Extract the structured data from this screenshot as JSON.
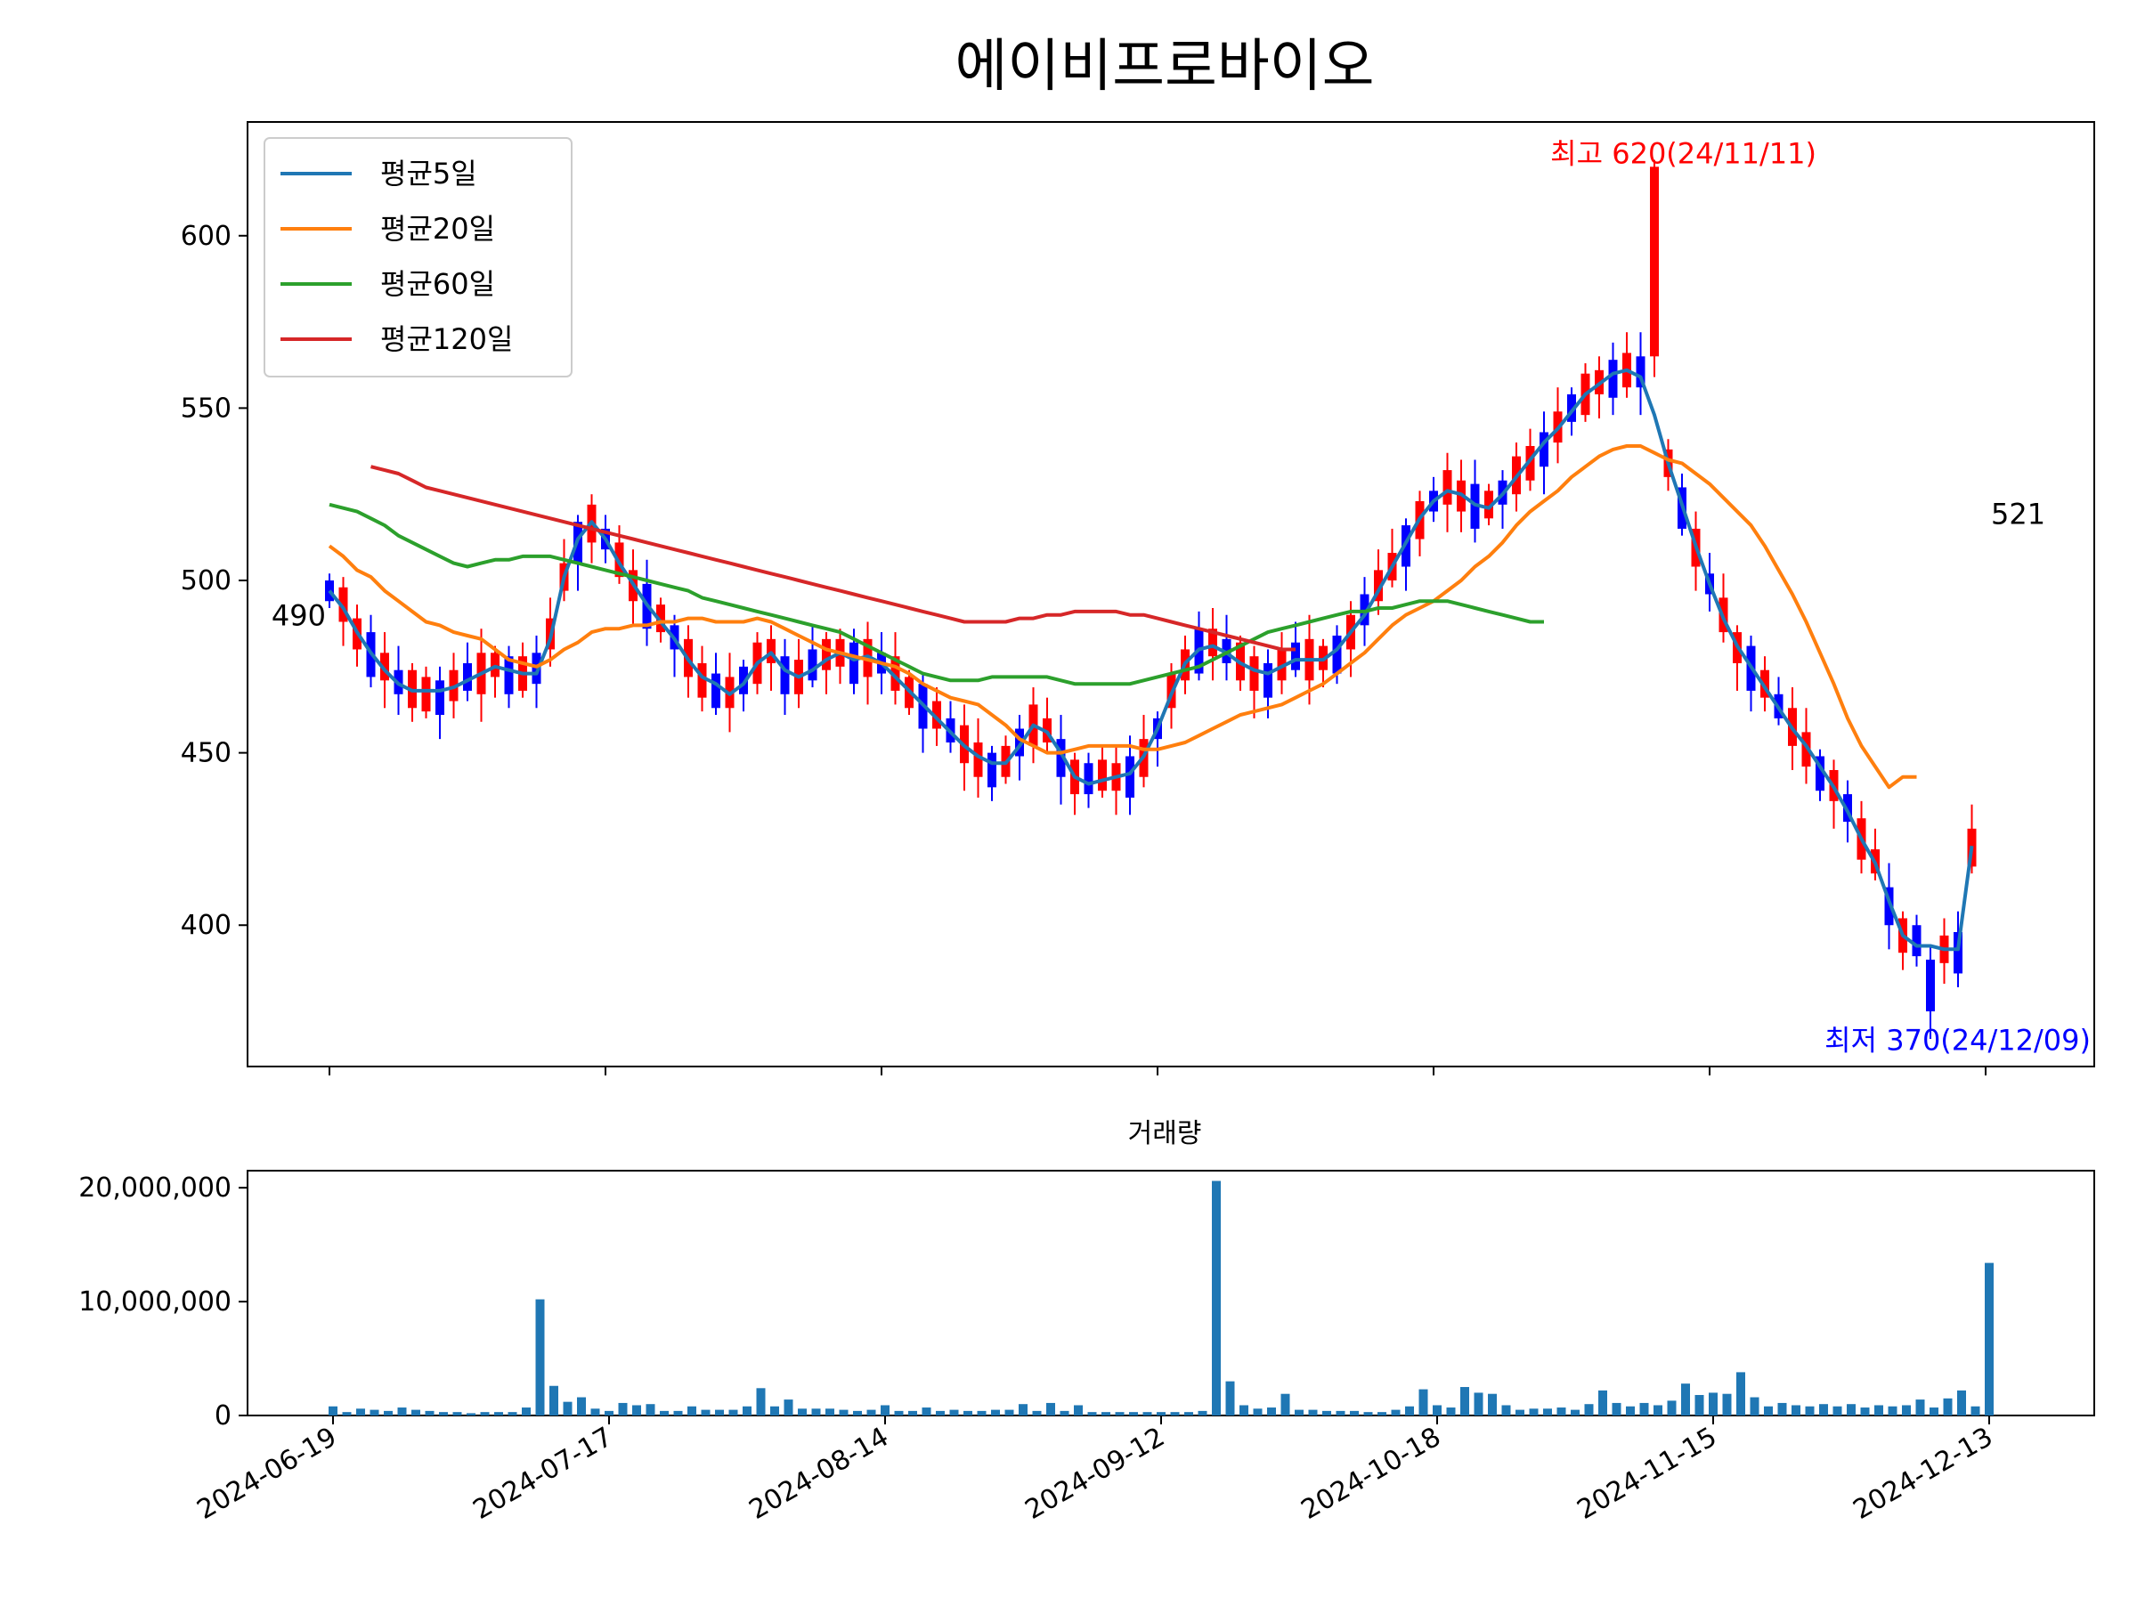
{
  "chart_data": [
    {
      "type": "candlestick",
      "title": "에이비프로바이오",
      "x_tick_labels": [
        "2024-06-19",
        "2024-07-17",
        "2024-08-14",
        "2024-09-12",
        "2024-10-18",
        "2024-11-15",
        "2024-12-13"
      ],
      "x_tick_index": [
        0,
        20,
        40,
        60,
        80,
        100,
        120
      ],
      "ylim": [
        359,
        633
      ],
      "y_ticks": [
        400,
        450,
        500,
        550,
        600
      ],
      "grid": false,
      "legend_position": "upper-left",
      "colors": {
        "up": "#ff0000",
        "down": "#0000ff"
      },
      "series": [
        {
          "name": "평균5일",
          "color": "#1f77b4",
          "start": 0,
          "values": [
            497,
            492,
            485,
            479,
            474,
            470,
            468,
            468,
            468,
            469,
            471,
            473,
            475,
            474,
            473,
            473,
            483,
            501,
            512,
            517,
            512,
            505,
            499,
            493,
            488,
            483,
            477,
            472,
            470,
            467,
            470,
            476,
            479,
            474,
            472,
            474,
            477,
            479,
            477,
            478,
            476,
            472,
            468,
            464,
            460,
            456,
            452,
            449,
            447,
            447,
            452,
            458,
            456,
            450,
            443,
            441,
            442,
            443,
            444,
            449,
            457,
            467,
            476,
            480,
            481,
            479,
            476,
            474,
            473,
            475,
            477,
            477,
            477,
            480,
            485,
            490,
            497,
            504,
            511,
            518,
            523,
            526,
            525,
            522,
            521,
            525,
            530,
            535,
            540,
            544,
            549,
            554,
            557,
            560,
            561,
            559,
            548,
            534,
            522,
            510,
            499,
            489,
            481,
            475,
            469,
            463,
            457,
            452,
            446,
            440,
            433,
            425,
            418,
            407,
            397,
            394,
            394,
            393,
            393,
            423
          ]
        },
        {
          "name": "평균20일",
          "color": "#ff7f0e",
          "start": 0,
          "values": [
            510,
            507,
            503,
            501,
            497,
            494,
            491,
            488,
            487,
            485,
            484,
            483,
            480,
            477,
            476,
            475,
            477,
            480,
            482,
            485,
            486,
            486,
            487,
            487,
            488,
            488,
            489,
            489,
            488,
            488,
            488,
            489,
            488,
            486,
            484,
            482,
            480,
            479,
            478,
            477,
            476,
            475,
            473,
            470,
            468,
            466,
            465,
            464,
            461,
            458,
            454,
            452,
            450,
            450,
            451,
            452,
            452,
            452,
            452,
            451,
            451,
            452,
            453,
            455,
            457,
            459,
            461,
            462,
            463,
            464,
            466,
            468,
            470,
            473,
            476,
            479,
            483,
            487,
            490,
            492,
            494,
            497,
            500,
            504,
            507,
            511,
            516,
            520,
            523,
            526,
            530,
            533,
            536,
            538,
            539,
            539,
            537,
            535,
            534,
            531,
            528,
            524,
            520,
            516,
            510,
            503,
            496,
            488,
            479,
            470,
            460,
            452,
            446,
            440,
            443,
            443
          ]
        },
        {
          "name": "평균60일",
          "color": "#2ca02c",
          "start": 0,
          "values": [
            522,
            521,
            520,
            518,
            516,
            513,
            511,
            509,
            507,
            505,
            504,
            505,
            506,
            506,
            507,
            507,
            507,
            506,
            505,
            504,
            503,
            502,
            501,
            500,
            499,
            498,
            497,
            495,
            494,
            493,
            492,
            491,
            490,
            489,
            488,
            487,
            486,
            485,
            483,
            481,
            479,
            477,
            475,
            473,
            472,
            471,
            471,
            471,
            472,
            472,
            472,
            472,
            472,
            471,
            470,
            470,
            470,
            470,
            470,
            471,
            472,
            473,
            474,
            475,
            477,
            479,
            481,
            483,
            485,
            486,
            487,
            488,
            489,
            490,
            491,
            491,
            492,
            492,
            493,
            494,
            494,
            494,
            493,
            492,
            491,
            490,
            489,
            488,
            488
          ]
        },
        {
          "name": "평균120일",
          "color": "#d62728",
          "start": 3,
          "values": [
            533,
            532,
            531,
            529,
            527,
            526,
            525,
            524,
            523,
            522,
            521,
            520,
            519,
            518,
            517,
            516,
            515,
            514,
            513,
            512,
            511,
            510,
            509,
            508,
            507,
            506,
            505,
            504,
            503,
            502,
            501,
            500,
            499,
            498,
            497,
            496,
            495,
            494,
            493,
            492,
            491,
            490,
            489,
            488,
            488,
            488,
            488,
            489,
            489,
            490,
            490,
            491,
            491,
            491,
            491,
            490,
            490,
            489,
            488,
            487,
            486,
            485,
            484,
            483,
            482,
            481,
            480,
            480
          ]
        }
      ],
      "annotations": [
        {
          "text": "최고 620(24/11/11)",
          "color": "#ff0000",
          "x_index": 96,
          "y": 620
        },
        {
          "text": "최저 370(24/12/09)",
          "color": "#0000ff",
          "x_index": 116,
          "y": 370
        },
        {
          "text": "490",
          "color": "#000000",
          "x_index": 0,
          "y": 490
        },
        {
          "text": "521",
          "color": "#000000",
          "x_index": 120,
          "y": 521
        }
      ]
    },
    {
      "type": "bar",
      "title": "거래량",
      "ylim": [
        0,
        21500000
      ],
      "y_ticks": [
        0,
        10000000,
        20000000
      ],
      "y_tick_labels": [
        "0",
        "10,000,000",
        "20,000,000"
      ],
      "color": "#1f77b4",
      "values": [
        800000,
        300000,
        600000,
        500000,
        400000,
        700000,
        500000,
        400000,
        300000,
        300000,
        200000,
        300000,
        300000,
        300000,
        700000,
        10200000,
        2600000,
        1200000,
        1600000,
        600000,
        400000,
        1100000,
        900000,
        1000000,
        400000,
        400000,
        800000,
        500000,
        500000,
        500000,
        800000,
        2400000,
        800000,
        1400000,
        600000,
        600000,
        600000,
        500000,
        400000,
        500000,
        900000,
        400000,
        400000,
        700000,
        400000,
        500000,
        400000,
        400000,
        500000,
        500000,
        1000000,
        400000,
        1100000,
        400000,
        900000,
        300000,
        300000,
        300000,
        300000,
        300000,
        300000,
        300000,
        300000,
        400000,
        20600000,
        3000000,
        900000,
        600000,
        700000,
        1900000,
        500000,
        500000,
        400000,
        400000,
        400000,
        300000,
        300000,
        500000,
        800000,
        2300000,
        900000,
        700000,
        2500000,
        2000000,
        1900000,
        900000,
        500000,
        600000,
        600000,
        700000,
        500000,
        1000000,
        2200000,
        1100000,
        800000,
        1100000,
        900000,
        1300000,
        2800000,
        1800000,
        2000000,
        1900000,
        3800000,
        1600000,
        800000,
        1100000,
        900000,
        800000,
        1000000,
        800000,
        1000000,
        700000,
        900000,
        800000,
        900000,
        1400000,
        700000,
        1500000,
        2200000,
        800000,
        13400000
      ]
    }
  ],
  "legend_title_note": ""
}
